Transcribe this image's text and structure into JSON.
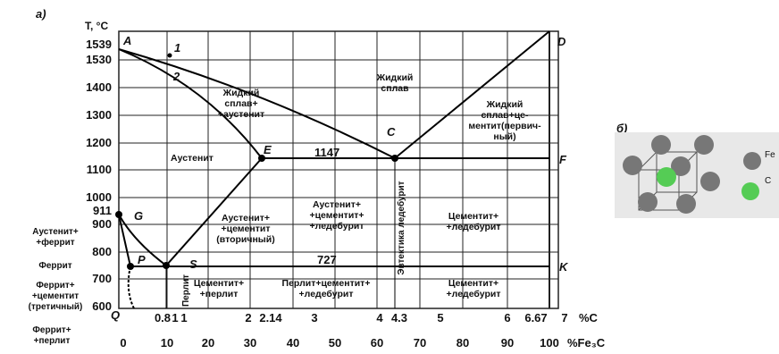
{
  "panel_a_label": "а)",
  "panel_b_label": "б)",
  "y_axis_label": "T, °C",
  "y_ticks": [
    "1539",
    "1530",
    "1400",
    "1300",
    "1200",
    "1100",
    "1000",
    "911",
    "900",
    "800",
    "700",
    "600"
  ],
  "x_ticks_c": [
    "0.8",
    "1",
    "1",
    "2",
    "2.14",
    "3",
    "4",
    "4.3",
    "5",
    "6",
    "6.67",
    "7"
  ],
  "x_unit_c": "%C",
  "x_ticks_fe3c": [
    "0",
    "10",
    "20",
    "30",
    "40",
    "50",
    "60",
    "70",
    "80",
    "90",
    "100"
  ],
  "x_unit_fe3c": "%Fe₃C",
  "points": {
    "A": "A",
    "one": "1",
    "two": "2",
    "D": "D",
    "E": "E",
    "C": "C",
    "F": "F",
    "G": "G",
    "P": "P",
    "S": "S",
    "K": "K",
    "Q": "Q"
  },
  "temperatures": {
    "eutectic": "1147",
    "eutectoid": "727"
  },
  "left_labels": {
    "austenite_ferrite": [
      "Аустенит+",
      "+феррит"
    ],
    "ferrite": [
      "Феррит"
    ],
    "ferrite_cementite": [
      "Феррит+",
      "+цементит",
      "(третичный)"
    ],
    "ferrite_pearlite": [
      "Феррит+",
      "+перлит"
    ]
  },
  "regions": {
    "liquid": [
      "Жидкий",
      "сплав"
    ],
    "liquid_austenite": [
      "Жидкий",
      "сплав+",
      "+аустенит"
    ],
    "liquid_cementite": [
      "Жидкий",
      "сплав+це-",
      "ментит(первич-",
      "ный)"
    ],
    "austenite": [
      "Аустенит"
    ],
    "austenite_cementite": [
      "Аустенит+",
      "+цементит",
      "(вторичный)"
    ],
    "austenite_cementite_ledeburite": [
      "Аустенит+",
      "+цементит+",
      "+ледебурит"
    ],
    "cementite_ledeburite_upper": [
      "Цементит+",
      "+ледебурит"
    ],
    "cementite_pearlite": [
      "Цементит+",
      "+перлит"
    ],
    "pearlite_cementite_ledeburite": [
      "Перлит+цементит+",
      "+ледебурит"
    ],
    "cementite_ledeburite_lower": [
      "Цементит+",
      "+ледебурит"
    ]
  },
  "vertical_labels": {
    "pearlite": "Перлит",
    "eutectic": "Эвтектика ледебурит"
  },
  "legend": {
    "fe": "Fe",
    "c": "C"
  }
}
